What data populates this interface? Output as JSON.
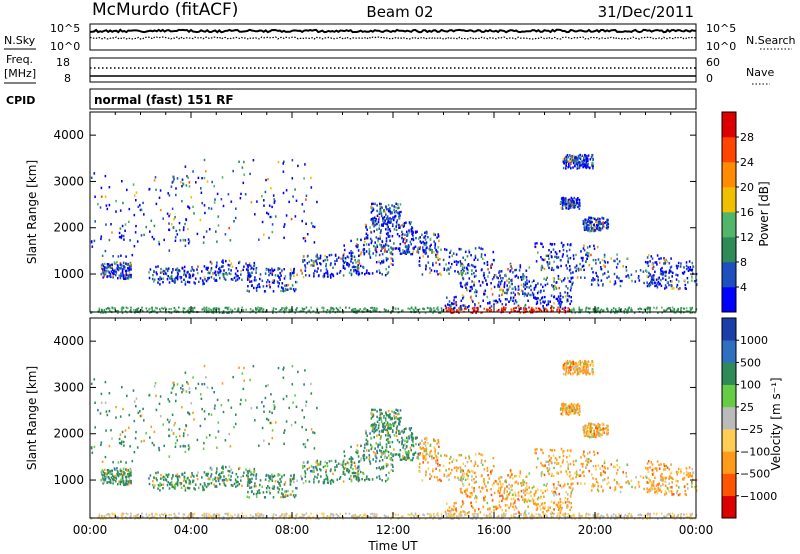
{
  "header": {
    "station": "McMurdo (fitACF)",
    "beam": "Beam 02",
    "date": "31/Dec/2011"
  },
  "noise_panel": {
    "left_label": "N.Sky",
    "right_label": "N.Search",
    "ticks_left": [
      "10^5",
      "10^0"
    ],
    "ticks_right": [
      "10^5",
      "10^0"
    ]
  },
  "freq_panel": {
    "left_label_1": "Freq.",
    "left_label_2": "[MHz]",
    "right_label": "Nave",
    "ticks_left": [
      "18",
      "8"
    ],
    "ticks_right": [
      "60",
      "0"
    ]
  },
  "cpid": {
    "label": "CPID",
    "value": "normal (fast) 151 RF"
  },
  "chart_data": [
    {
      "type": "heatmap",
      "name": "power",
      "ylabel": "Slant Range [km]",
      "yticks": [
        1000,
        2000,
        3000,
        4000
      ],
      "ylim": [
        180,
        4500
      ],
      "xticks": [
        "00:00",
        "04:00",
        "08:00",
        "12:00",
        "16:00",
        "20:00",
        "00:00"
      ],
      "xlim_hours": [
        0,
        24
      ],
      "colorbar": {
        "label": "Power [dB]",
        "ticks": [
          "4",
          "8",
          "12",
          "16",
          "20",
          "24",
          "28"
        ],
        "colors": [
          "#0000ff",
          "#1e4fbf",
          "#2e8b57",
          "#52b66a",
          "#f0c000",
          "#ff8c00",
          "#ff4500",
          "#dd0000"
        ]
      }
    },
    {
      "type": "heatmap",
      "name": "velocity",
      "ylabel": "Slant Range [km]",
      "yticks": [
        1000,
        2000,
        3000,
        4000
      ],
      "ylim": [
        180,
        4500
      ],
      "xticks": [
        "00:00",
        "04:00",
        "08:00",
        "12:00",
        "16:00",
        "20:00",
        "00:00"
      ],
      "xlabel": "Time UT",
      "xlim_hours": [
        0,
        24
      ],
      "colorbar": {
        "label": "Velocity  [m s⁻¹]",
        "ticks": [
          "1000",
          "500",
          "100",
          "25",
          "−25",
          "−100",
          "−500",
          "−1000"
        ],
        "colors": [
          "#1a3fa8",
          "#2e6fbf",
          "#2e8b57",
          "#66cc44",
          "#bbbbbb",
          "#ffcc55",
          "#ff9a1a",
          "#ff5500",
          "#dd0000"
        ]
      }
    }
  ]
}
